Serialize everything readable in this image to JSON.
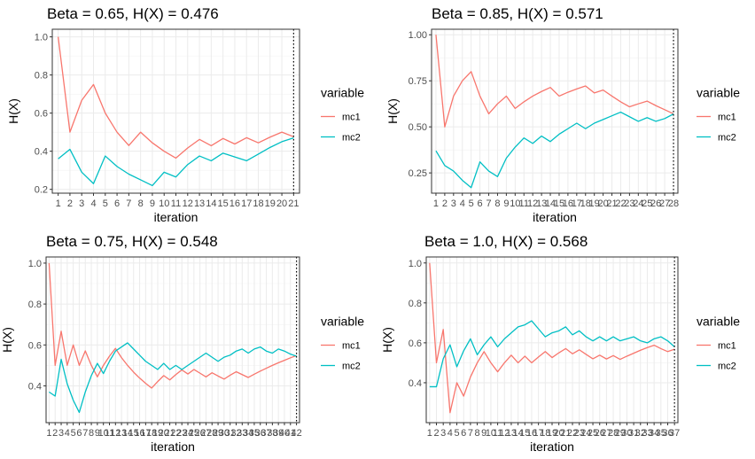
{
  "chart_data": [
    {
      "type": "line",
      "title": "Beta = 0.65, H(X) = 0.476",
      "xlabel": "iteration",
      "ylabel": "H(X)",
      "n": 21,
      "xlim": [
        0.5,
        21.5
      ],
      "ylim": [
        0.18,
        1.04
      ],
      "yticks": [
        0.2,
        0.4,
        0.6,
        0.8,
        1.0
      ],
      "ytick_labels": [
        "0.2",
        "0.4",
        "0.6",
        "0.8",
        "1.0"
      ],
      "vline": 21,
      "legend_title": "variable",
      "series": [
        {
          "name": "mc1",
          "color": "#F8766D",
          "values": [
            1.0,
            0.5,
            0.667,
            0.75,
            0.6,
            0.5,
            0.43,
            0.5,
            0.444,
            0.4,
            0.364,
            0.417,
            0.462,
            0.429,
            0.467,
            0.438,
            0.471,
            0.444,
            0.474,
            0.5,
            0.476
          ]
        },
        {
          "name": "mc2",
          "color": "#00BFC4",
          "values": [
            0.36,
            0.41,
            0.29,
            0.23,
            0.375,
            0.32,
            0.28,
            0.25,
            0.22,
            0.29,
            0.265,
            0.33,
            0.375,
            0.35,
            0.39,
            0.37,
            0.35,
            0.385,
            0.42,
            0.45,
            0.47
          ]
        }
      ]
    },
    {
      "type": "line",
      "title": "Beta = 0.85, H(X) = 0.571",
      "xlabel": "iteration",
      "ylabel": "H(X)",
      "n": 28,
      "xlim": [
        0.5,
        28.5
      ],
      "ylim": [
        0.14,
        1.03
      ],
      "yticks": [
        0.25,
        0.5,
        0.75,
        1.0
      ],
      "ytick_labels": [
        "0.25",
        "0.50",
        "0.75",
        "1.00"
      ],
      "vline": 28,
      "legend_title": "variable",
      "series": [
        {
          "name": "mc1",
          "color": "#F8766D",
          "values": [
            1.0,
            0.5,
            0.667,
            0.75,
            0.8,
            0.667,
            0.571,
            0.625,
            0.667,
            0.6,
            0.636,
            0.667,
            0.692,
            0.714,
            0.667,
            0.688,
            0.706,
            0.722,
            0.684,
            0.7,
            0.667,
            0.636,
            0.609,
            0.625,
            0.64,
            0.615,
            0.593,
            0.571
          ]
        },
        {
          "name": "mc2",
          "color": "#00BFC4",
          "values": [
            0.37,
            0.29,
            0.26,
            0.21,
            0.17,
            0.31,
            0.26,
            0.23,
            0.33,
            0.39,
            0.44,
            0.41,
            0.45,
            0.42,
            0.46,
            0.49,
            0.52,
            0.49,
            0.52,
            0.54,
            0.56,
            0.58,
            0.555,
            0.53,
            0.55,
            0.53,
            0.545,
            0.57
          ]
        }
      ]
    },
    {
      "type": "line",
      "title": "Beta = 0.75, H(X) = 0.548",
      "xlabel": "iteration",
      "ylabel": "H(X)",
      "n": 42,
      "xlim": [
        0.5,
        42.5
      ],
      "ylim": [
        0.22,
        1.03
      ],
      "yticks": [
        0.4,
        0.6,
        0.8,
        1.0
      ],
      "ytick_labels": [
        "0.4",
        "0.6",
        "0.8",
        "1.0"
      ],
      "vline": 42,
      "legend_title": "variable",
      "series": [
        {
          "name": "mc1",
          "color": "#F8766D",
          "values": [
            1.0,
            0.5,
            0.667,
            0.5,
            0.6,
            0.5,
            0.571,
            0.5,
            0.444,
            0.5,
            0.545,
            0.583,
            0.538,
            0.5,
            0.467,
            0.438,
            0.412,
            0.389,
            0.421,
            0.45,
            0.429,
            0.455,
            0.478,
            0.458,
            0.48,
            0.462,
            0.444,
            0.464,
            0.448,
            0.433,
            0.452,
            0.469,
            0.455,
            0.441,
            0.457,
            0.472,
            0.486,
            0.5,
            0.513,
            0.525,
            0.537,
            0.548
          ]
        },
        {
          "name": "mc2",
          "color": "#00BFC4",
          "values": [
            0.37,
            0.35,
            0.53,
            0.41,
            0.33,
            0.27,
            0.37,
            0.45,
            0.51,
            0.46,
            0.52,
            0.57,
            0.59,
            0.61,
            0.58,
            0.55,
            0.52,
            0.5,
            0.48,
            0.51,
            0.48,
            0.5,
            0.48,
            0.5,
            0.52,
            0.54,
            0.56,
            0.54,
            0.52,
            0.54,
            0.55,
            0.57,
            0.58,
            0.56,
            0.58,
            0.59,
            0.57,
            0.56,
            0.58,
            0.57,
            0.555,
            0.545
          ]
        }
      ]
    },
    {
      "type": "line",
      "title": "Beta = 1.0, H(X) = 0.568",
      "xlabel": "iteration",
      "ylabel": "H(X)",
      "n": 37,
      "xlim": [
        0.5,
        37.5
      ],
      "ylim": [
        0.2,
        1.03
      ],
      "yticks": [
        0.4,
        0.6,
        0.8,
        1.0
      ],
      "ytick_labels": [
        "0.4",
        "0.6",
        "0.8",
        "1.0"
      ],
      "vline": 37,
      "legend_title": "variable",
      "series": [
        {
          "name": "mc1",
          "color": "#F8766D",
          "values": [
            1.0,
            0.5,
            0.667,
            0.25,
            0.4,
            0.333,
            0.429,
            0.5,
            0.556,
            0.5,
            0.455,
            0.5,
            0.538,
            0.5,
            0.533,
            0.5,
            0.529,
            0.556,
            0.526,
            0.55,
            0.571,
            0.545,
            0.565,
            0.542,
            0.52,
            0.538,
            0.519,
            0.536,
            0.517,
            0.533,
            0.548,
            0.563,
            0.576,
            0.588,
            0.571,
            0.556,
            0.568
          ]
        },
        {
          "name": "mc2",
          "color": "#00BFC4",
          "values": [
            0.38,
            0.38,
            0.52,
            0.59,
            0.48,
            0.56,
            0.62,
            0.54,
            0.59,
            0.63,
            0.58,
            0.62,
            0.65,
            0.68,
            0.69,
            0.71,
            0.67,
            0.63,
            0.65,
            0.66,
            0.68,
            0.64,
            0.66,
            0.63,
            0.61,
            0.63,
            0.61,
            0.63,
            0.61,
            0.62,
            0.63,
            0.61,
            0.6,
            0.62,
            0.63,
            0.61,
            0.58
          ]
        }
      ]
    }
  ]
}
